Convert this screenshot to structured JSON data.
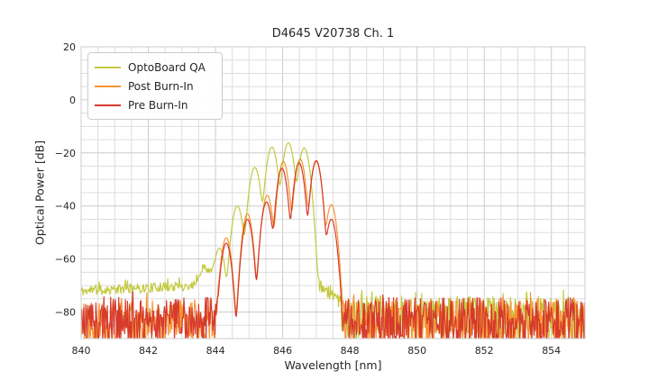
{
  "chart_data": {
    "type": "line",
    "title": "D4645 V20738 Ch. 1",
    "xlabel": "Wavelength [nm]",
    "ylabel": "Optical Power [dB]",
    "xlim": [
      840,
      855
    ],
    "ylim": [
      -90,
      20
    ],
    "xticks": [
      840,
      842,
      844,
      846,
      848,
      850,
      852,
      854
    ],
    "yticks": [
      20,
      0,
      -20,
      -40,
      -60,
      -80
    ],
    "grid": {
      "major": true,
      "minor": true,
      "minor_x_step_nm": 0.5,
      "minor_y_step_db": 5,
      "major_color": "#cccccc",
      "minor_color": "#dddddd",
      "border_color": "#cccccc"
    },
    "legend": {
      "position": "upper-left",
      "entries": [
        "OptoBoard QA",
        "Post Burn-In",
        "Pre Burn-In"
      ]
    },
    "series": [
      {
        "name": "OptoBoard QA",
        "color": "#c3c93e",
        "mode_sigma_nm": 0.085,
        "noise_seed": 11,
        "modes_nm_db": [
          [
            843.65,
            -66
          ],
          [
            844.12,
            -56
          ],
          [
            844.65,
            -40
          ],
          [
            845.17,
            -25.5
          ],
          [
            845.68,
            -17.8
          ],
          [
            846.17,
            -16.2
          ],
          [
            846.64,
            -18.1
          ]
        ],
        "floor_segments": [
          {
            "from": 840.0,
            "to": 843.3,
            "base_from": -72.3,
            "base_to": -70.3,
            "noise_up": 2.0,
            "noise_down": 1.6
          },
          {
            "from": 843.3,
            "to": 843.95,
            "base_from": -70.3,
            "base_to": -64.5,
            "noise_up": 1.5,
            "noise_down": 1.2
          },
          {
            "from": 843.95,
            "to": 844.35,
            "base_from": -64.5,
            "base_to": -82.0,
            "noise_up": 1.0,
            "noise_down": 1.0
          },
          {
            "from": 844.35,
            "to": 847.0,
            "base_from": -96.0,
            "base_to": -96.0,
            "noise_up": 0.0,
            "noise_down": 0.0
          },
          {
            "from": 847.0,
            "to": 847.75,
            "base_from": -69.0,
            "base_to": -77.0,
            "noise_up": 2.5,
            "noise_down": 2.5
          },
          {
            "from": 847.75,
            "to": 855.0,
            "base_from": -78.5,
            "base_to": -78.5,
            "noise_up": 4.5,
            "noise_down": 12.0
          }
        ]
      },
      {
        "name": "Post Burn-In",
        "color": "#f79432",
        "mode_sigma_nm": 0.078,
        "noise_seed": 22,
        "modes_nm_db": [
          [
            844.32,
            -52
          ],
          [
            844.95,
            -43
          ],
          [
            845.54,
            -36
          ],
          [
            846.02,
            -23.2
          ],
          [
            846.52,
            -22.3
          ],
          [
            847.0,
            -23.2
          ],
          [
            847.45,
            -39.5
          ]
        ],
        "floor_segments": [
          {
            "from": 840.0,
            "to": 844.2,
            "base_from": -79.5,
            "base_to": -79.5,
            "noise_up": 4.5,
            "noise_down": 13.0
          },
          {
            "from": 844.2,
            "to": 844.5,
            "base_from": -82.0,
            "base_to": -96.0,
            "noise_up": 2.0,
            "noise_down": 2.0
          },
          {
            "from": 844.5,
            "to": 847.55,
            "base_from": -96.0,
            "base_to": -96.0,
            "noise_up": 0.0,
            "noise_down": 0.0
          },
          {
            "from": 847.55,
            "to": 855.0,
            "base_from": -79.5,
            "base_to": -79.5,
            "noise_up": 4.5,
            "noise_down": 13.0
          }
        ]
      },
      {
        "name": "Pre Burn-In",
        "color": "#d63a2b",
        "mode_sigma_nm": 0.078,
        "noise_seed": 33,
        "modes_nm_db": [
          [
            844.32,
            -54
          ],
          [
            844.95,
            -45
          ],
          [
            845.52,
            -38.5
          ],
          [
            845.98,
            -25.8
          ],
          [
            846.49,
            -23.8
          ],
          [
            847.0,
            -22.9
          ],
          [
            847.45,
            -45
          ]
        ],
        "floor_segments": [
          {
            "from": 840.0,
            "to": 844.22,
            "base_from": -79.0,
            "base_to": -79.0,
            "noise_up": 4.5,
            "noise_down": 14.0
          },
          {
            "from": 844.22,
            "to": 844.5,
            "base_from": -82.0,
            "base_to": -96.0,
            "noise_up": 2.0,
            "noise_down": 2.0
          },
          {
            "from": 844.5,
            "to": 847.55,
            "base_from": -96.0,
            "base_to": -96.0,
            "noise_up": 0.0,
            "noise_down": 0.0
          },
          {
            "from": 847.55,
            "to": 855.0,
            "base_from": -79.0,
            "base_to": -79.0,
            "noise_up": 4.5,
            "noise_down": 14.0
          }
        ]
      }
    ]
  }
}
